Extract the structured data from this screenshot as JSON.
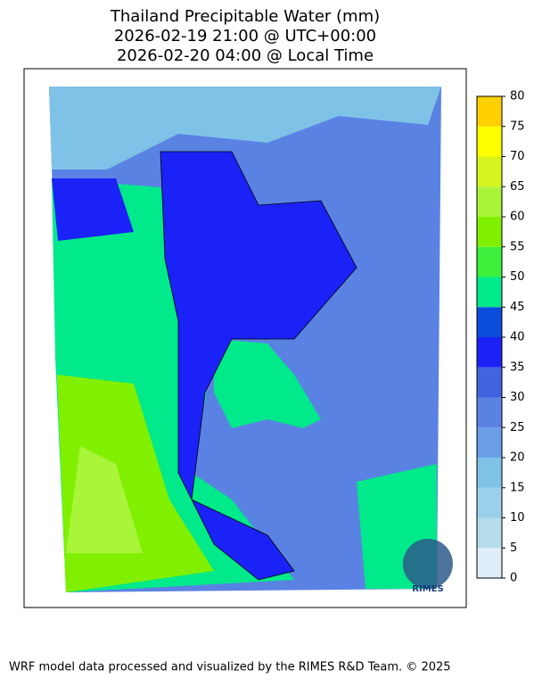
{
  "title": [
    "Thailand Precipitable Water (mm)",
    "2026-02-19 21:00 @ UTC+00:00",
    "2026-02-20 04:00 @ Local Time"
  ],
  "colorbar": {
    "ticks": [
      0,
      5,
      10,
      15,
      20,
      25,
      30,
      35,
      40,
      45,
      50,
      55,
      60,
      65,
      70,
      75,
      80
    ],
    "colors": [
      "#deedf7",
      "#b5dcea",
      "#9bd0ea",
      "#7fc2e8",
      "#6a9ee9",
      "#5a82e3",
      "#4262e0",
      "#1a22f8",
      "#0a4ddc",
      "#00e98a",
      "#3cf03c",
      "#80f000",
      "#a9f53a",
      "#d6f51f",
      "#ffff00",
      "#ffd000"
    ]
  },
  "logo": "RIMES",
  "footer": "WRF model data processed and visualized by the RIMES R&D Team. © 2025"
}
